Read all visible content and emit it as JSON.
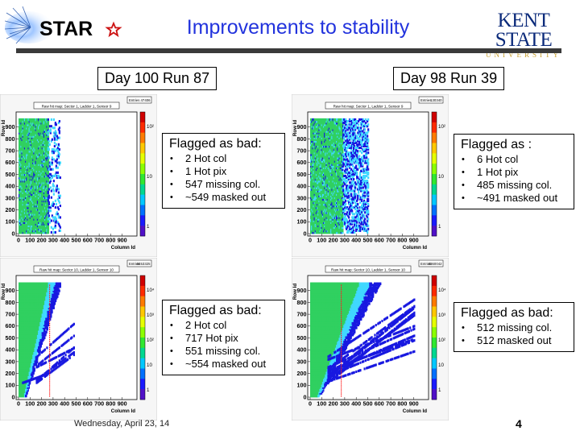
{
  "header": {
    "logo_text": "STAR",
    "title": "Improvements to stability",
    "university_name": "KENT STATE",
    "university_sub": "UNIVERSITY"
  },
  "runs": {
    "left": "Day 100 Run 87",
    "right": "Day 98 Run 39"
  },
  "plots": [
    {
      "id": "p1",
      "title": "Raw hit map: Sector 1, Ladder 1, Sensor 9",
      "entries_label": "Entries",
      "entries": "47406",
      "xlabel": "Column Id",
      "ylabel": "Row Id",
      "xticks": [
        "0",
        "100",
        "200",
        "300",
        "400",
        "500",
        "600",
        "700",
        "800",
        "900"
      ],
      "yticks": [
        "0",
        "100",
        "200",
        "300",
        "400",
        "500",
        "600",
        "700",
        "800",
        "900"
      ],
      "zticks": [
        "1",
        "10",
        "10²"
      ],
      "pattern": "band-narrow"
    },
    {
      "id": "p2",
      "title": "Raw hit map: Sector 1, Ladder 1, Sensor 9",
      "entries_label": "Entries",
      "entries": "130340",
      "xlabel": "Column Id",
      "ylabel": "Row Id",
      "xticks": [
        "0",
        "100",
        "200",
        "300",
        "400",
        "500",
        "600",
        "700",
        "800",
        "900"
      ],
      "yticks": [
        "0",
        "100",
        "200",
        "300",
        "400",
        "500",
        "600",
        "700",
        "800",
        "900"
      ],
      "zticks": [
        "1",
        "10",
        "10²"
      ],
      "pattern": "band-wide"
    },
    {
      "id": "p3",
      "title": "Raw hit map: Sector 10, Ladder 1, Sensor 10",
      "entries_label": "Entries",
      "entries": "3453325",
      "xlabel": "Column Id",
      "ylabel": "Row Id",
      "xticks": [
        "0",
        "100",
        "200",
        "300",
        "400",
        "500",
        "600",
        "700",
        "800",
        "900"
      ],
      "yticks": [
        "0",
        "100",
        "200",
        "300",
        "400",
        "500",
        "600",
        "700",
        "800",
        "900"
      ],
      "zticks": [
        "1",
        "10",
        "10²",
        "10³",
        "10⁴"
      ],
      "pattern": "fan-left"
    },
    {
      "id": "p4",
      "title": "Raw hit map: Sector 10, Ladder 1, Sensor 10",
      "entries_label": "Entries",
      "entries": "3360042",
      "xlabel": "Column Id",
      "ylabel": "Row Id",
      "xticks": [
        "0",
        "100",
        "200",
        "300",
        "400",
        "500",
        "600",
        "700",
        "800",
        "900"
      ],
      "yticks": [
        "0",
        "100",
        "200",
        "300",
        "400",
        "500",
        "600",
        "700",
        "800",
        "900"
      ],
      "zticks": [
        "1",
        "10",
        "10²",
        "10³",
        "10⁴"
      ],
      "pattern": "fan-wide"
    }
  ],
  "flags": [
    {
      "heading": "Flagged as bad:",
      "items": [
        "2 Hot col",
        "1 Hot pix",
        "547 missing col.",
        "~549 masked out"
      ]
    },
    {
      "heading": "Flagged as :",
      "items": [
        "6 Hot col",
        "1 Hot pix",
        "485 missing col.",
        "~491 masked out"
      ]
    },
    {
      "heading": "Flagged as bad:",
      "items": [
        "2 Hot col",
        "717 Hot pix",
        "551 missing col.",
        "~554 masked out"
      ]
    },
    {
      "heading": "Flagged as bad:",
      "items": [
        "512 missing col.",
        "512 masked out"
      ]
    }
  ],
  "footer": {
    "date": "Wednesday, April 23, 14",
    "page": "4"
  },
  "colors": {
    "title": "#2233dd",
    "header_bar": "#3a3a3a",
    "hit_green": "#30d060",
    "hit_cyan": "#40d8ff",
    "hit_blue": "#1818e0",
    "marker_red": "#ff2020"
  }
}
